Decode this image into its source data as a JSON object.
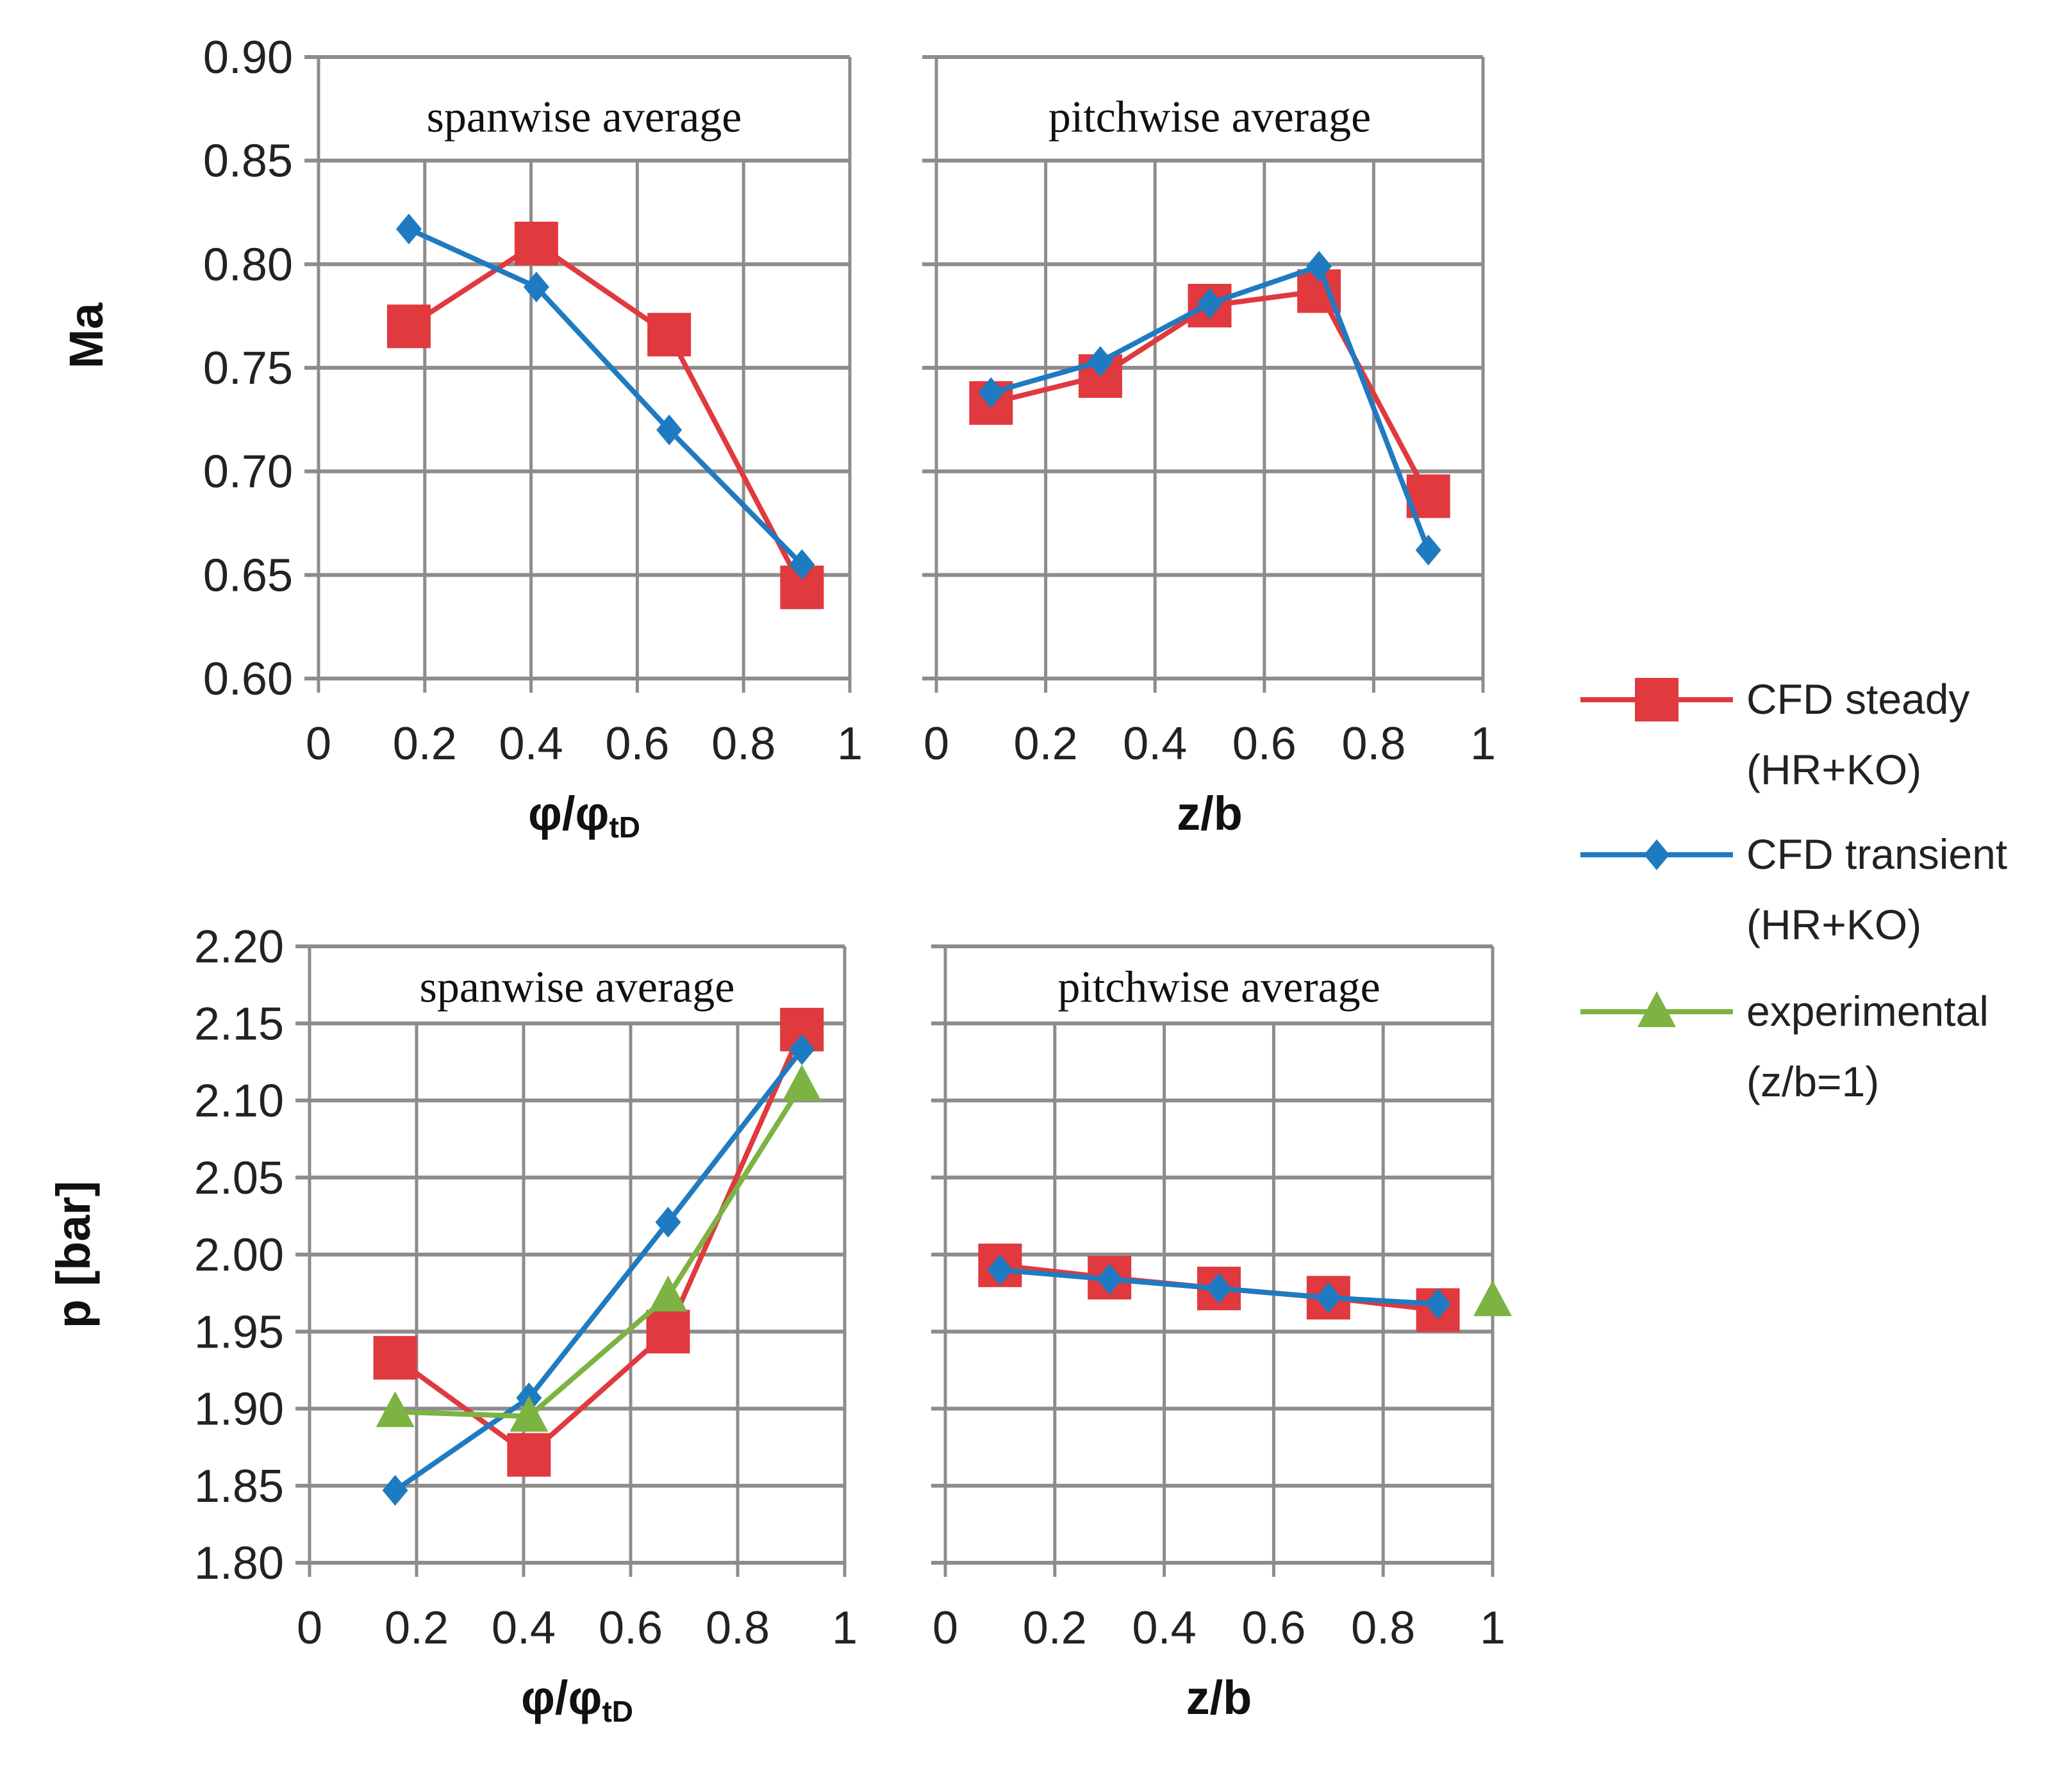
{
  "colors": {
    "cfd_steady": "#e0393e",
    "cfd_transient": "#1f7bc1",
    "experimental": "#7cb342",
    "grid": "#8c8c8c"
  },
  "legend": [
    {
      "line1": "CFD steady",
      "line2": "(HR+KO)",
      "series": "cfd_steady",
      "marker": "square"
    },
    {
      "line1": "CFD transient",
      "line2": "(HR+KO)",
      "series": "cfd_transient",
      "marker": "diamond"
    },
    {
      "line1": "experimental",
      "line2": "(z/b=1)",
      "series": "experimental",
      "marker": "triangle"
    }
  ],
  "chart_data": [
    {
      "type": "line",
      "title": "spanwise average",
      "xlabel": "φ/φ",
      "xlabel_sub": "tD",
      "ylabel": "Ma",
      "xlim": [
        0,
        1
      ],
      "ylim": [
        0.6,
        0.9
      ],
      "xticks": [
        "0",
        "0.2",
        "0.4",
        "0.6",
        "0.8",
        "1"
      ],
      "yticks": [
        "0.60",
        "0.65",
        "0.70",
        "0.75",
        "0.80",
        "0.85",
        "0.90"
      ],
      "show_ytick_labels": true,
      "grid": true,
      "series": [
        {
          "name": "CFD steady (HR+KO)",
          "key": "cfd_steady",
          "x": [
            0.17,
            0.41,
            0.66,
            0.91
          ],
          "y": [
            0.77,
            0.81,
            0.766,
            0.644
          ]
        },
        {
          "name": "CFD transient (HR+KO)",
          "key": "cfd_transient",
          "x": [
            0.17,
            0.41,
            0.66,
            0.91
          ],
          "y": [
            0.817,
            0.789,
            0.72,
            0.655
          ]
        }
      ]
    },
    {
      "type": "line",
      "title": "pitchwise average",
      "xlabel": "z/b",
      "xlabel_sub": "",
      "ylabel": "",
      "xlim": [
        0,
        1
      ],
      "ylim": [
        0.6,
        0.9
      ],
      "xticks": [
        "0",
        "0.2",
        "0.4",
        "0.6",
        "0.8",
        "1"
      ],
      "yticks": [
        "0.60",
        "0.65",
        "0.70",
        "0.75",
        "0.80",
        "0.85",
        "0.90"
      ],
      "show_ytick_labels": false,
      "grid": true,
      "series": [
        {
          "name": "CFD steady (HR+KO)",
          "key": "cfd_steady",
          "x": [
            0.1,
            0.3,
            0.5,
            0.7,
            0.9
          ],
          "y": [
            0.733,
            0.746,
            0.78,
            0.787,
            0.688
          ]
        },
        {
          "name": "CFD transient (HR+KO)",
          "key": "cfd_transient",
          "x": [
            0.1,
            0.3,
            0.5,
            0.7,
            0.9
          ],
          "y": [
            0.738,
            0.753,
            0.781,
            0.799,
            0.662
          ]
        }
      ]
    },
    {
      "type": "line",
      "title": "spanwise average",
      "xlabel": "φ/φ",
      "xlabel_sub": "tD",
      "ylabel": "p [bar]",
      "xlim": [
        0,
        1
      ],
      "ylim": [
        1.8,
        2.2
      ],
      "xticks": [
        "0",
        "0.2",
        "0.4",
        "0.6",
        "0.8",
        "1"
      ],
      "yticks": [
        "1.80",
        "1.85",
        "1.90",
        "1.95",
        "2.00",
        "2.05",
        "2.10",
        "2.15",
        "2.20"
      ],
      "show_ytick_labels": true,
      "grid": true,
      "series": [
        {
          "name": "CFD steady (HR+KO)",
          "key": "cfd_steady",
          "x": [
            0.16,
            0.41,
            0.67,
            0.92
          ],
          "y": [
            1.933,
            1.87,
            1.95,
            2.146
          ]
        },
        {
          "name": "CFD transient (HR+KO)",
          "key": "cfd_transient",
          "x": [
            0.16,
            0.41,
            0.67,
            0.92
          ],
          "y": [
            1.847,
            1.907,
            2.021,
            2.133
          ]
        },
        {
          "name": "experimental (z/b=1)",
          "key": "experimental",
          "x": [
            0.16,
            0.41,
            0.67,
            0.92
          ],
          "y": [
            1.898,
            1.895,
            1.973,
            2.11
          ]
        }
      ]
    },
    {
      "type": "line",
      "title": "pitchwise average",
      "xlabel": "z/b",
      "xlabel_sub": "",
      "ylabel": "",
      "xlim": [
        0,
        1
      ],
      "ylim": [
        1.8,
        2.2
      ],
      "xticks": [
        "0",
        "0.2",
        "0.4",
        "0.6",
        "0.8",
        "1"
      ],
      "yticks": [
        "1.80",
        "1.85",
        "1.90",
        "1.95",
        "2.00",
        "2.05",
        "2.10",
        "2.15",
        "2.20"
      ],
      "show_ytick_labels": false,
      "grid": true,
      "series": [
        {
          "name": "CFD steady (HR+KO)",
          "key": "cfd_steady",
          "x": [
            0.1,
            0.3,
            0.5,
            0.7,
            0.9
          ],
          "y": [
            1.993,
            1.985,
            1.978,
            1.972,
            1.964
          ]
        },
        {
          "name": "CFD transient (HR+KO)",
          "key": "cfd_transient",
          "x": [
            0.1,
            0.3,
            0.5,
            0.7,
            0.9
          ],
          "y": [
            1.99,
            1.984,
            1.978,
            1.972,
            1.968
          ]
        },
        {
          "name": "experimental (z/b=1)",
          "key": "experimental",
          "x": [
            1.0
          ],
          "y": [
            1.97
          ]
        }
      ]
    }
  ]
}
